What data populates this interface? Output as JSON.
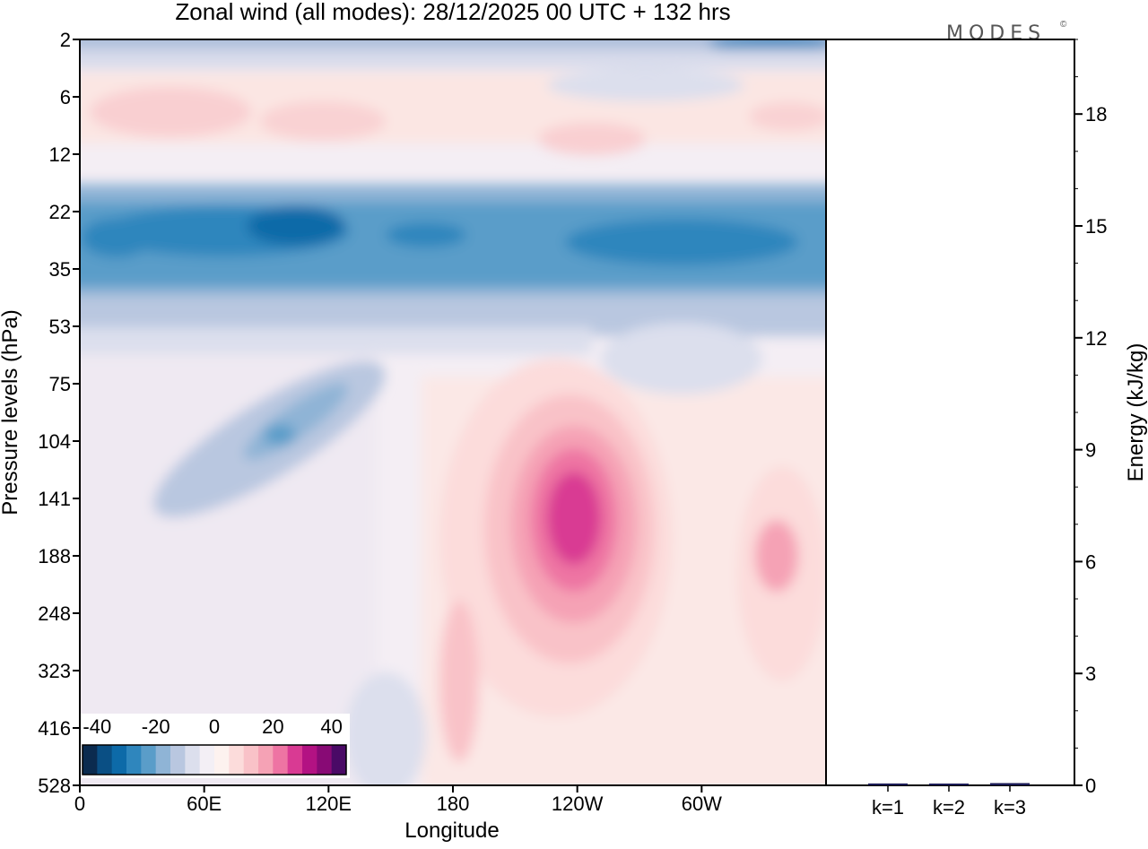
{
  "chart_data": {
    "type": "heatmap",
    "title": "Zonal wind (all modes):  28/12/2025  00 UTC  + 132 hrs",
    "logo": "MODES",
    "logo_mark": "©",
    "xlabel": "Longitude",
    "ylabel": "Pressure levels (hPa)",
    "x_ticks": [
      "0",
      "60E",
      "120E",
      "180",
      "120W",
      "60W"
    ],
    "x_tick_values": [
      0,
      60,
      120,
      180,
      240,
      300
    ],
    "x_range": [
      0,
      360
    ],
    "y_ticks": [
      "2",
      "6",
      "12",
      "22",
      "35",
      "53",
      "75",
      "104",
      "141",
      "188",
      "248",
      "323",
      "416",
      "528"
    ],
    "colorbar": {
      "tick_labels": [
        "-40",
        "-20",
        "0",
        "20",
        "40"
      ],
      "tick_values": [
        -40,
        -20,
        0,
        20,
        40
      ],
      "levels": [
        -45,
        -40,
        -35,
        -30,
        -25,
        -20,
        -15,
        -10,
        -5,
        0,
        5,
        10,
        15,
        20,
        25,
        30,
        35,
        40,
        45
      ],
      "colors": [
        "#0b2b4f",
        "#0a4f84",
        "#0d6aa8",
        "#2f86bd",
        "#5a9dc9",
        "#8fb4d6",
        "#b9c7e0",
        "#dcdfed",
        "#f3eff5",
        "#fdf2ef",
        "#fcdcdb",
        "#f9c2c8",
        "#f5a2b5",
        "#ee74a3",
        "#d93a93",
        "#b31283",
        "#880a75",
        "#4a0a66"
      ]
    },
    "features": [
      {
        "name": "upper-easterly-band",
        "lon": [
          0,
          360
        ],
        "lev": [
          "2",
          "2"
        ],
        "value": -30
      },
      {
        "name": "strat-westerly-band",
        "lon": [
          0,
          360
        ],
        "lev": [
          "6",
          "12"
        ],
        "value": 8
      },
      {
        "name": "strat-easterly-jet",
        "lon": [
          0,
          360
        ],
        "lev": [
          "22",
          "35"
        ],
        "value": -38
      },
      {
        "name": "tilted-easterly-tongue",
        "lon": [
          40,
          150
        ],
        "lev": [
          "75",
          "188"
        ],
        "value": -22
      },
      {
        "name": "westerly-maximum-120W",
        "lon": [
          220,
          260
        ],
        "lev": [
          "104",
          "188"
        ],
        "value": 37
      },
      {
        "name": "westerly-secondary-20W",
        "lon": [
          320,
          355
        ],
        "lev": [
          "141",
          "248"
        ],
        "value": 15
      }
    ],
    "energy_axis": {
      "label": "Energy (kJ/kg)",
      "ticks": [
        0,
        3,
        6,
        9,
        12,
        15,
        18
      ],
      "range": [
        0,
        20
      ],
      "categories": [
        "k=1",
        "k=2",
        "k=3"
      ],
      "values": [
        0.05,
        0.03,
        0.06
      ]
    }
  }
}
